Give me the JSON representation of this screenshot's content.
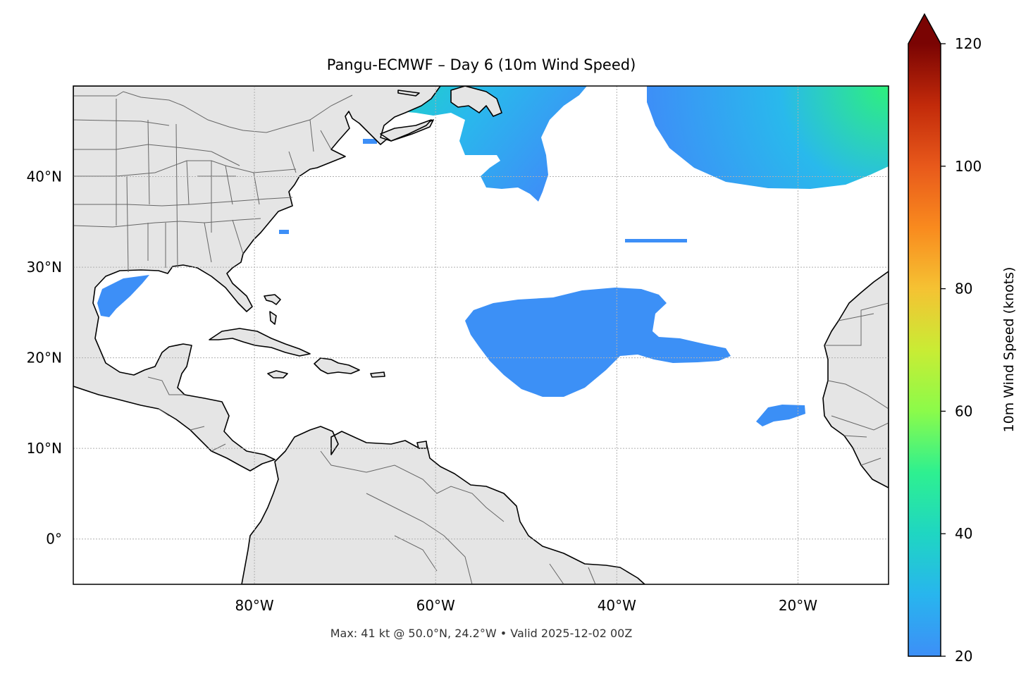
{
  "title": "Pangu-ECMWF – Day 6 (10m Wind Speed)",
  "footer": "Max: 41 kt @ 50.0°N, 24.2°W • Valid 2025-12-02 00Z",
  "map": {
    "lon_range": [
      -100,
      -10
    ],
    "lat_range": [
      -5,
      50
    ],
    "lon_ticks": [
      {
        "value": -80,
        "label": "80°W"
      },
      {
        "value": -60,
        "label": "60°W"
      },
      {
        "value": -40,
        "label": "40°W"
      },
      {
        "value": -20,
        "label": "20°W"
      }
    ],
    "lat_ticks": [
      {
        "value": 40,
        "label": "40°N"
      },
      {
        "value": 30,
        "label": "30°N"
      },
      {
        "value": 20,
        "label": "20°N"
      },
      {
        "value": 10,
        "label": "10°N"
      },
      {
        "value": 0,
        "label": "0°"
      }
    ],
    "land_color": "#e5e5e5",
    "ocean_color": "#ffffff",
    "grid": true
  },
  "colorbar": {
    "label": "10m Wind Speed (knots)",
    "range": [
      20,
      120
    ],
    "ticks": [
      {
        "value": 20,
        "label": "20"
      },
      {
        "value": 40,
        "label": "40"
      },
      {
        "value": 60,
        "label": "60"
      },
      {
        "value": 80,
        "label": "80"
      },
      {
        "value": 100,
        "label": "100"
      },
      {
        "value": 120,
        "label": "120"
      }
    ],
    "extend": "max",
    "colormap": "turbo",
    "colors": [
      "#3d8ff7",
      "#28b5ee",
      "#1fd6c2",
      "#2ef090",
      "#8bfb4a",
      "#c9ec34",
      "#f5c233",
      "#f98a1e",
      "#e8591b",
      "#c22a0a",
      "#7a0403"
    ]
  },
  "wind_colors": {
    "low": "#3d8ff7",
    "mid": "#29b9ec",
    "high": "#2ef07d"
  }
}
